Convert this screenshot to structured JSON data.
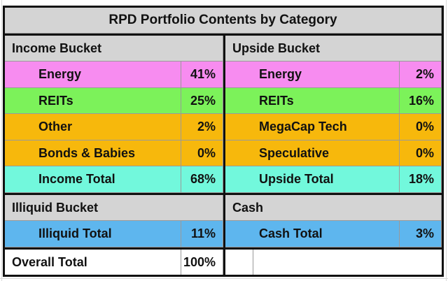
{
  "title": "RPD Portfolio Contents by Category",
  "colors": {
    "energy": "#f78cf0",
    "reits": "#7cf25a",
    "orange": "#f7b80c",
    "total": "#72f8dc",
    "illiquid": "#5eb6ee",
    "header_gray": "#d4d4d4"
  },
  "income": {
    "header": "Income Bucket",
    "rows": [
      {
        "label": "Energy",
        "value": "41%"
      },
      {
        "label": "REITs",
        "value": "25%"
      },
      {
        "label": "Other",
        "value": "2%"
      },
      {
        "label": "Bonds & Babies",
        "value": "0%"
      },
      {
        "label": "Income Total",
        "value": "68%"
      }
    ]
  },
  "upside": {
    "header": "Upside Bucket",
    "rows": [
      {
        "label": "Energy",
        "value": "2%"
      },
      {
        "label": "REITs",
        "value": "16%"
      },
      {
        "label": "MegaCap Tech",
        "value": "0%"
      },
      {
        "label": "Speculative",
        "value": "0%"
      },
      {
        "label": "Upside Total",
        "value": "18%"
      }
    ]
  },
  "illiquid": {
    "header": "Illiquid Bucket",
    "total_label": "Illiquid Total",
    "total_value": "11%"
  },
  "cash": {
    "header": "Cash",
    "total_label": "Cash Total",
    "total_value": "3%"
  },
  "overall": {
    "label": "Overall Total",
    "value": "100%"
  }
}
